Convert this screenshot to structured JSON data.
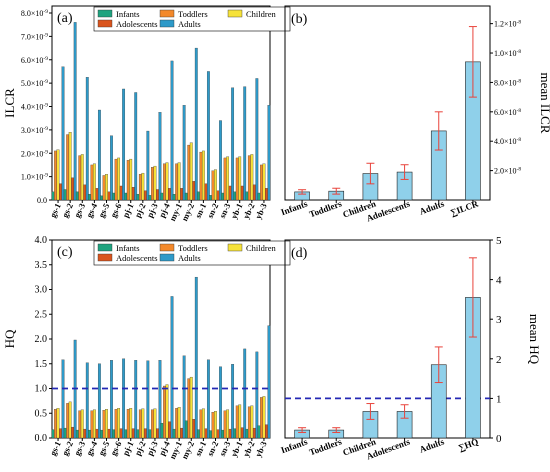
{
  "colors": {
    "Infants": "#1fa37f",
    "Toddlers": "#f3892b",
    "Children": "#f6e23a",
    "Adolescents": "#d9541d",
    "Adults": "#2e9ac9",
    "mean_bar": "#8fd0ea",
    "error_bar": "#e8433b",
    "threshold": "#2428b5"
  },
  "chart_data": [
    {
      "type": "bar",
      "panel": "(a)",
      "ylabel": "ILCR",
      "exponent": "-9",
      "y_ticks": [
        "0.0",
        "1.0×10",
        "2.0×10",
        "3.0×10",
        "4.0×10",
        "5.0×10",
        "6.0×10",
        "7.0×10",
        "8.0×10"
      ],
      "ylim": [
        0,
        8.3
      ],
      "categories": [
        "gs-1",
        "gs-2",
        "gs-3",
        "gs-4",
        "gs-5",
        "gs-6",
        "pj-1",
        "pj-2",
        "pj-3",
        "pj-4",
        "my-1",
        "my-2",
        "sn-1",
        "sn-2",
        "sn-3",
        "yb-1",
        "yb-2",
        "yb-3"
      ],
      "legend": [
        "Infants",
        "Toddlers",
        "Children",
        "Adolescents",
        "Adults"
      ],
      "series": [
        {
          "name": "Infants",
          "values": [
            0.35,
            0.45,
            0.35,
            0.25,
            0.18,
            0.3,
            0.3,
            0.25,
            0.2,
            0.3,
            0.25,
            0.3,
            0.35,
            0.2,
            0.3,
            0.35,
            0.35,
            0.3
          ]
        },
        {
          "name": "Toddlers",
          "values": [
            2.1,
            2.8,
            1.9,
            1.5,
            1.05,
            1.75,
            1.7,
            1.1,
            1.4,
            1.55,
            1.55,
            2.35,
            2.05,
            1.25,
            1.8,
            1.8,
            1.9,
            1.5
          ]
        },
        {
          "name": "Children",
          "values": [
            2.15,
            2.9,
            1.95,
            1.55,
            1.1,
            1.8,
            1.75,
            1.15,
            1.45,
            1.6,
            1.6,
            2.45,
            2.1,
            1.3,
            1.85,
            1.85,
            1.95,
            1.55
          ]
        },
        {
          "name": "Adolescents",
          "values": [
            0.7,
            0.95,
            0.65,
            0.5,
            0.35,
            0.6,
            0.55,
            0.4,
            0.45,
            0.5,
            0.5,
            0.8,
            0.7,
            0.4,
            0.6,
            0.6,
            0.65,
            0.5
          ]
        },
        {
          "name": "Adults",
          "values": [
            5.7,
            7.6,
            5.25,
            3.85,
            2.75,
            4.75,
            4.6,
            2.95,
            3.75,
            5.95,
            4.05,
            6.5,
            5.5,
            3.4,
            4.8,
            4.85,
            5.2,
            4.05
          ]
        }
      ]
    },
    {
      "type": "bar",
      "panel": "(b)",
      "ylabel": "mean ILCR",
      "exponent": "-8",
      "y_ticks": [
        "2.0×10",
        "4.0×10",
        "6.0×10",
        "8.0×10",
        "1.0×10",
        "1.2×10"
      ],
      "y_tick_values": [
        0.2,
        0.4,
        0.6,
        0.8,
        1.0,
        1.2
      ],
      "ylim": [
        0,
        1.32
      ],
      "categories": [
        "Infants",
        "Toddlers",
        "Children",
        "Adolescents",
        "Adults",
        "∑ILCR"
      ],
      "values": [
        0.055,
        0.06,
        0.18,
        0.19,
        0.47,
        0.94
      ],
      "errors": [
        0.015,
        0.02,
        0.07,
        0.05,
        0.13,
        0.24
      ]
    },
    {
      "type": "bar",
      "panel": "(c)",
      "ylabel": "HQ",
      "y_ticks": [
        "0.0",
        "0.5",
        "1.0",
        "1.5",
        "2.0",
        "2.5",
        "3.0",
        "3.5",
        "4.0"
      ],
      "ylim": [
        0,
        4
      ],
      "threshold": 1.0,
      "categories": [
        "gs-1",
        "gs-2",
        "gs-3",
        "gs-4",
        "gs-5",
        "gs-6",
        "pj-1",
        "pj-2",
        "pj-3",
        "pj-4",
        "my-1",
        "my-2",
        "sn-1",
        "sn-2",
        "sn-3",
        "yb-1",
        "yb-2",
        "yb-3"
      ],
      "legend": [
        "Infants",
        "Toddlers",
        "Children",
        "Adolescents",
        "Adults"
      ],
      "series": [
        {
          "name": "Infants",
          "values": [
            0.17,
            0.2,
            0.16,
            0.16,
            0.16,
            0.17,
            0.17,
            0.17,
            0.17,
            0.3,
            0.18,
            0.35,
            0.17,
            0.15,
            0.16,
            0.19,
            0.18,
            0.25
          ]
        },
        {
          "name": "Toddlers",
          "values": [
            0.58,
            0.7,
            0.55,
            0.55,
            0.56,
            0.58,
            0.58,
            0.57,
            0.57,
            1.05,
            0.6,
            1.2,
            0.57,
            0.52,
            0.55,
            0.65,
            0.63,
            0.82
          ]
        },
        {
          "name": "Children",
          "values": [
            0.6,
            0.73,
            0.57,
            0.57,
            0.58,
            0.6,
            0.6,
            0.59,
            0.59,
            1.08,
            0.62,
            1.23,
            0.59,
            0.54,
            0.57,
            0.67,
            0.65,
            0.84
          ]
        },
        {
          "name": "Adolescents",
          "values": [
            0.19,
            0.22,
            0.18,
            0.18,
            0.18,
            0.19,
            0.19,
            0.19,
            0.19,
            0.33,
            0.2,
            0.38,
            0.19,
            0.17,
            0.18,
            0.21,
            0.2,
            0.27
          ]
        },
        {
          "name": "Adults",
          "values": [
            1.58,
            1.98,
            1.52,
            1.5,
            1.57,
            1.6,
            1.57,
            1.56,
            1.57,
            2.86,
            1.66,
            3.25,
            1.58,
            1.44,
            1.49,
            1.8,
            1.74,
            2.27
          ]
        }
      ]
    },
    {
      "type": "bar",
      "panel": "(d)",
      "ylabel": "mean HQ",
      "y_ticks": [
        "0",
        "1",
        "2",
        "3",
        "4",
        "5"
      ],
      "y_tick_values": [
        0,
        1,
        2,
        3,
        4,
        5
      ],
      "ylim": [
        0,
        5
      ],
      "threshold": 1.0,
      "categories": [
        "Infants",
        "Toddlers",
        "Children",
        "Adolescents",
        "Adults",
        "∑HQ"
      ],
      "values": [
        0.2,
        0.2,
        0.67,
        0.67,
        1.85,
        3.55
      ],
      "errors": [
        0.06,
        0.06,
        0.2,
        0.17,
        0.45,
        1.0
      ]
    }
  ]
}
